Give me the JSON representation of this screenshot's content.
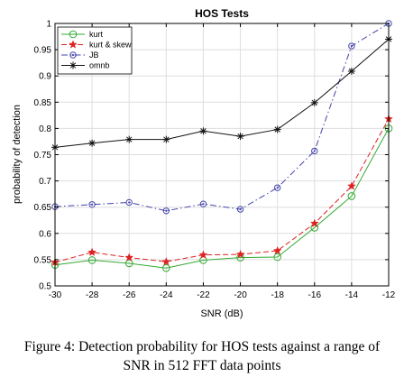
{
  "chart_data": {
    "type": "line",
    "title": "HOS Tests",
    "xlabel": "SNR (dB)",
    "ylabel": "probability of detection",
    "x": [
      -30,
      -28,
      -26,
      -24,
      -22,
      -20,
      -18,
      -16,
      -14,
      -12
    ],
    "xlim": [
      -30,
      -12
    ],
    "ylim": [
      0.5,
      1
    ],
    "xticks": [
      "-30",
      "-28",
      "-26",
      "-24",
      "-22",
      "-20",
      "-18",
      "-16",
      "-14",
      "-12"
    ],
    "yticks": [
      "0.5",
      "0.55",
      "0.6",
      "0.65",
      "0.7",
      "0.75",
      "0.8",
      "0.85",
      "0.9",
      "0.95",
      "1"
    ],
    "grid": true,
    "legend_position": "top-left",
    "series": [
      {
        "name": "kurt",
        "color": "#33aa33",
        "dash": "solid",
        "marker": "circle",
        "values": [
          0.54,
          0.549,
          0.543,
          0.534,
          0.549,
          0.554,
          0.555,
          0.611,
          0.671,
          0.8
        ]
      },
      {
        "name": "kurt & skew",
        "color": "#dd2222",
        "dash": "dashed",
        "marker": "star",
        "values": [
          0.545,
          0.564,
          0.554,
          0.546,
          0.559,
          0.56,
          0.567,
          0.619,
          0.69,
          0.818
        ]
      },
      {
        "name": "JB",
        "color": "#4444aa",
        "dash": "dashdot",
        "marker": "circle-dot",
        "values": [
          0.651,
          0.655,
          0.659,
          0.643,
          0.656,
          0.646,
          0.687,
          0.757,
          0.957,
          1.0
        ]
      },
      {
        "name": "omnb",
        "color": "#111111",
        "dash": "solid",
        "marker": "asterisk",
        "values": [
          0.764,
          0.772,
          0.779,
          0.779,
          0.795,
          0.785,
          0.798,
          0.849,
          0.909,
          0.97
        ]
      }
    ]
  },
  "caption": {
    "line1": "Figure 4: Detection probability for HOS tests against a range of",
    "line2": "SNR in 512 FFT data points"
  }
}
